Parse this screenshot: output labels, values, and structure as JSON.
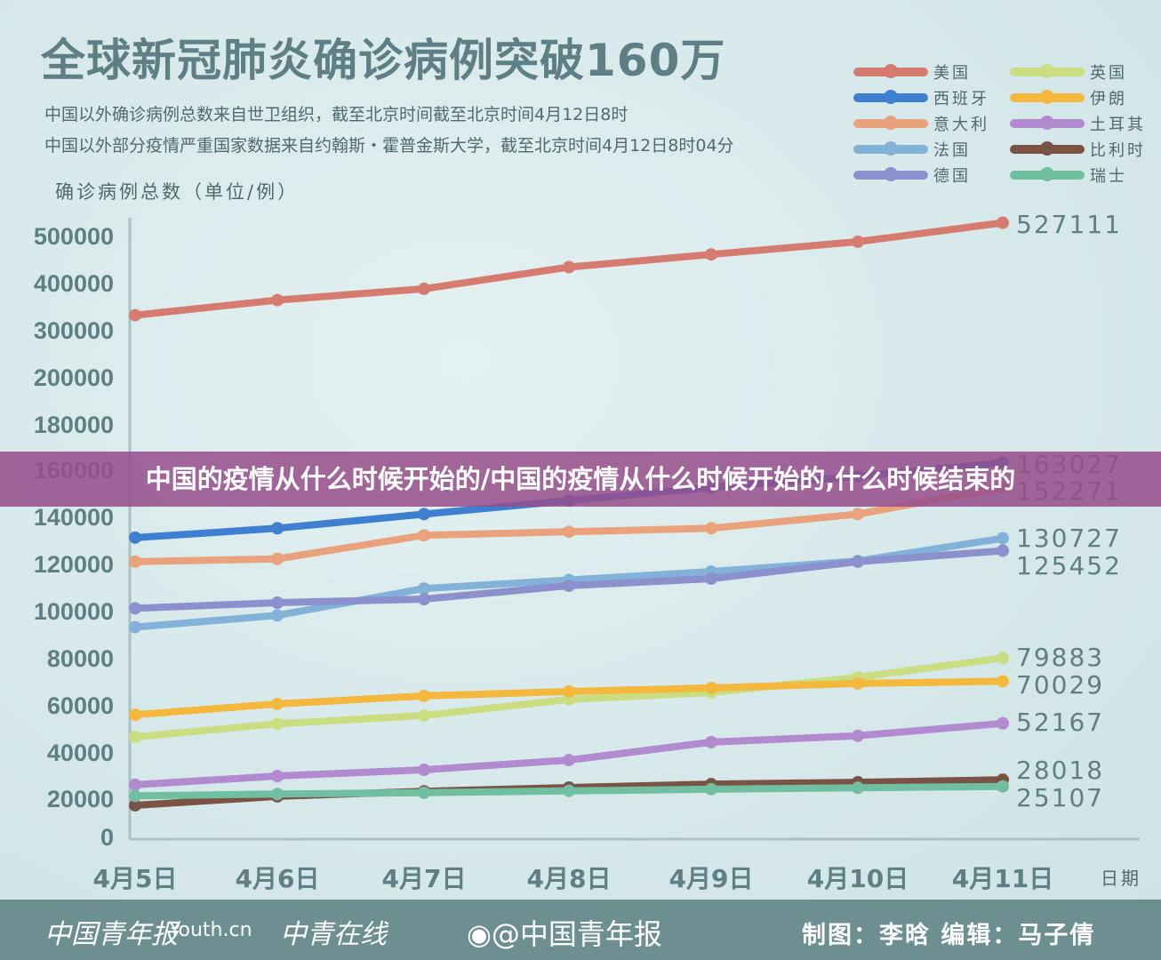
{
  "header": {
    "title": "全球新冠肺炎确诊病例突破160万",
    "subtitle1": "中国以外确诊病例总数来自世卫组织，截至北京时间截至北京时间4月12日8时",
    "subtitle2": "中国以外部分疫情严重国家数据来自约翰斯・霍普金斯大学，截至北京时间4月12日8时04分"
  },
  "banner": {
    "text": "中国的疫情从什么时候开始的/中国的疫情从什么时候开始的,什么时候结束的"
  },
  "footer": {
    "logo1": "中国青年报",
    "logo2": "Youth.cn",
    "logo3": "中青在线",
    "weibo": "@中国青年报",
    "weibo_icon": "weibo-icon",
    "credit": "制图：李晗  编辑：马子倩"
  },
  "chart_data": {
    "type": "line",
    "title": "全球新冠肺炎确诊病例突破160万",
    "ylabel": "确诊病例总数（单位/例）",
    "xlabel": "日期",
    "categories": [
      "4月5日",
      "4月6日",
      "4月7日",
      "4月8日",
      "4月9日",
      "4月10日",
      "4月11日"
    ],
    "yticks": [
      0,
      20000,
      40000,
      60000,
      80000,
      100000,
      120000,
      140000,
      160000,
      180000,
      200000,
      300000,
      400000,
      500000
    ],
    "y_scale": "piecewise (uniform tick spacing)",
    "legend_position": "top-right",
    "grid": false,
    "series": [
      {
        "name": "美国",
        "color": "#d67b70",
        "values": [
          331000,
          363000,
          387000,
          433000,
          460000,
          487000,
          527111
        ],
        "end_label": "527111"
      },
      {
        "name": "西班牙",
        "color": "#3f7fd0",
        "values": [
          131000,
          135000,
          141000,
          146700,
          152400,
          157000,
          163027
        ],
        "end_label": "163027"
      },
      {
        "name": "意大利",
        "color": "#e9a27c",
        "values": [
          120800,
          122000,
          132000,
          133500,
          135000,
          141000,
          152271
        ],
        "end_label": "152271"
      },
      {
        "name": "法国",
        "color": "#82b2d8",
        "values": [
          93000,
          98000,
          109400,
          113000,
          116600,
          121100,
          130727
        ],
        "end_label": "130727"
      },
      {
        "name": "德国",
        "color": "#8c90cc",
        "values": [
          101000,
          103400,
          104900,
          110600,
          113600,
          120800,
          125452
        ],
        "end_label": "125452"
      },
      {
        "name": "英国",
        "color": "#cadd80",
        "values": [
          46400,
          52000,
          55500,
          62300,
          65300,
          71700,
          79883
        ],
        "end_label": "79883"
      },
      {
        "name": "伊朗",
        "color": "#f3b83c",
        "values": [
          55800,
          60400,
          63800,
          65700,
          67200,
          69100,
          70029
        ],
        "end_label": "70029"
      },
      {
        "name": "土耳其",
        "color": "#b18ad0",
        "values": [
          25800,
          29600,
          32300,
          36500,
          44200,
          46900,
          52167
        ],
        "end_label": "52167"
      },
      {
        "name": "比利时",
        "color": "#7b5345",
        "values": [
          16300,
          20800,
          23000,
          24600,
          26100,
          26900,
          28018
        ],
        "end_label": "28018"
      },
      {
        "name": "瑞士",
        "color": "#6fbfa0",
        "values": [
          21000,
          21800,
          22400,
          23200,
          23900,
          24500,
          25107
        ],
        "end_label": "25107"
      }
    ]
  }
}
